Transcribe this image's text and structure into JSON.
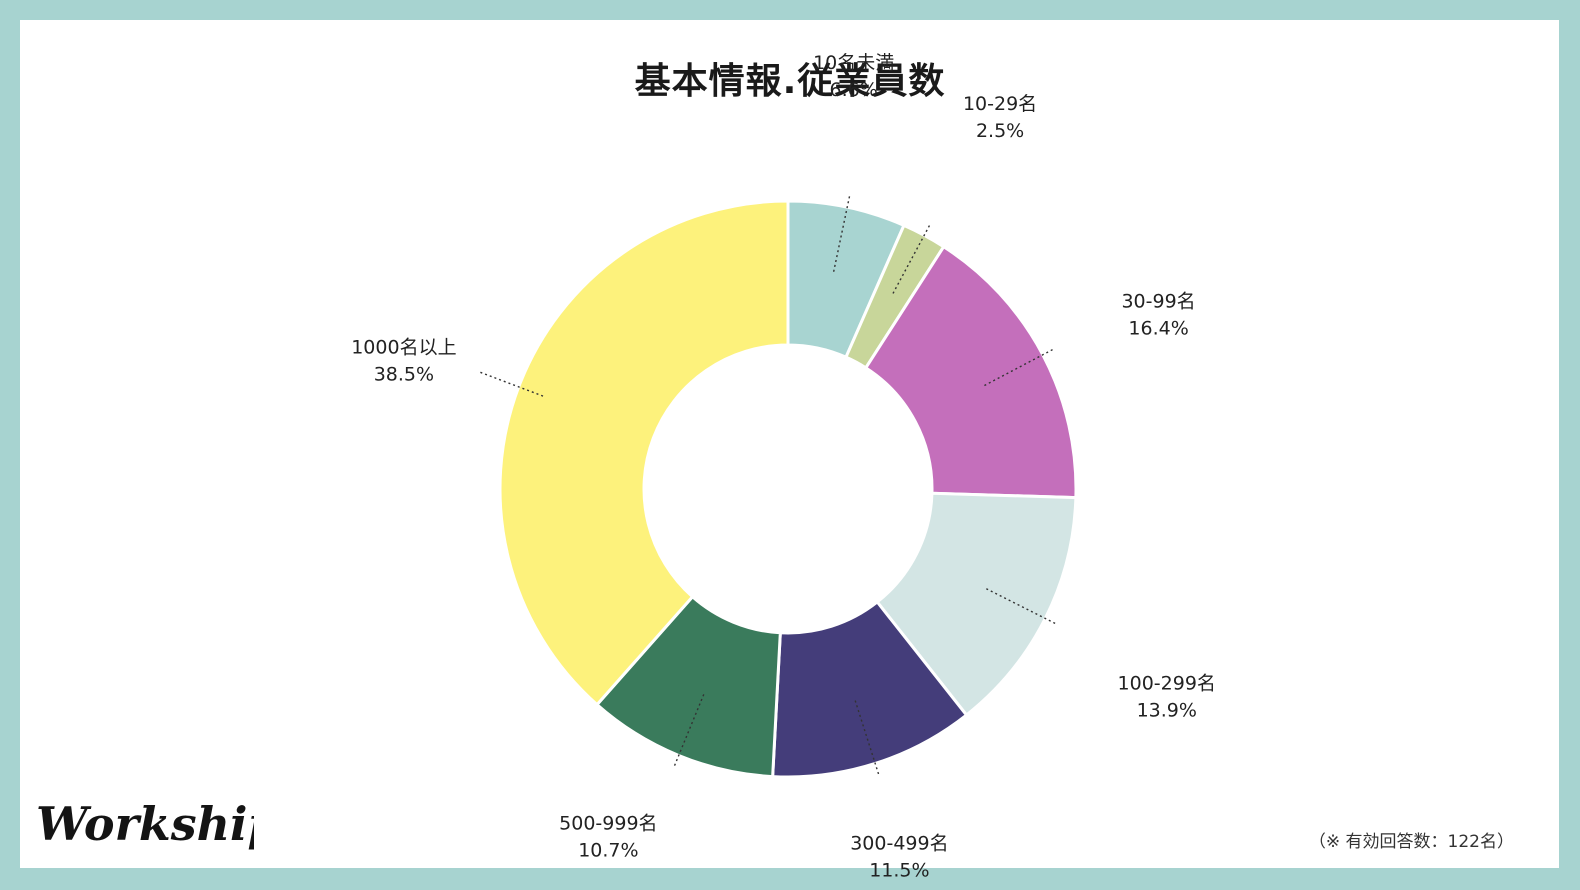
{
  "chart_data": {
    "type": "pie",
    "title": "基本情報.従業員数",
    "categories": [
      "10名未満",
      "10-29名",
      "30-99名",
      "100-299名",
      "300-499名",
      "500-999名",
      "1000名以上"
    ],
    "values": [
      6.6,
      2.5,
      16.4,
      13.9,
      11.5,
      10.7,
      38.5
    ],
    "value_labels": [
      "6.6%",
      "2.5%",
      "16.4%",
      "13.9%",
      "11.5%",
      "10.7%",
      "38.5%"
    ],
    "colors": [
      "#a8d4d1",
      "#c8d69a",
      "#c46fbb",
      "#d3e5e4",
      "#443d7a",
      "#3a7b5c",
      "#fdf27c"
    ],
    "style": "donut",
    "start": "12 o'clock, clockwise"
  },
  "footnote": "（※ 有効回答数：122名）",
  "brand": {
    "name": "Workship"
  },
  "colors": {
    "frame": "#a7d3d0",
    "background": "#ffffff"
  }
}
